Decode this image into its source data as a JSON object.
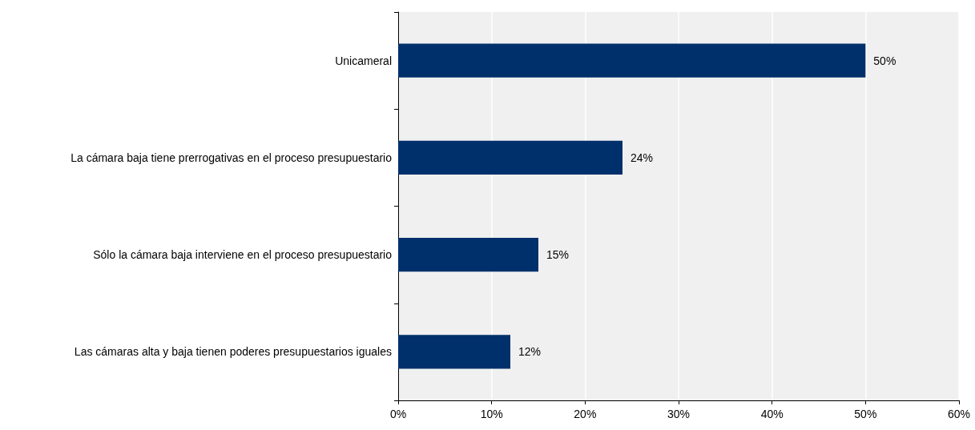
{
  "chart_data": {
    "type": "bar",
    "orientation": "horizontal",
    "categories": [
      "Unicameral",
      "La cámara baja tiene prerrogativas en el proceso presupuestario",
      "Sólo la cámara baja interviene en el proceso presupuestario",
      "Las cámaras alta y baja tienen poderes presupuestarios iguales"
    ],
    "values": [
      50,
      24,
      15,
      12
    ],
    "value_labels": [
      "50%",
      "24%",
      "15%",
      "12%"
    ],
    "color": "#00306b",
    "xlim": [
      0,
      60
    ],
    "xticks": [
      {
        "value": 0,
        "label": "0%"
      },
      {
        "value": 10,
        "label": "10%"
      },
      {
        "value": 20,
        "label": "20%"
      },
      {
        "value": 30,
        "label": "30%"
      },
      {
        "value": 40,
        "label": "40%"
      },
      {
        "value": 50,
        "label": "50%"
      },
      {
        "value": 60,
        "label": "60%"
      }
    ],
    "grid": "x"
  }
}
